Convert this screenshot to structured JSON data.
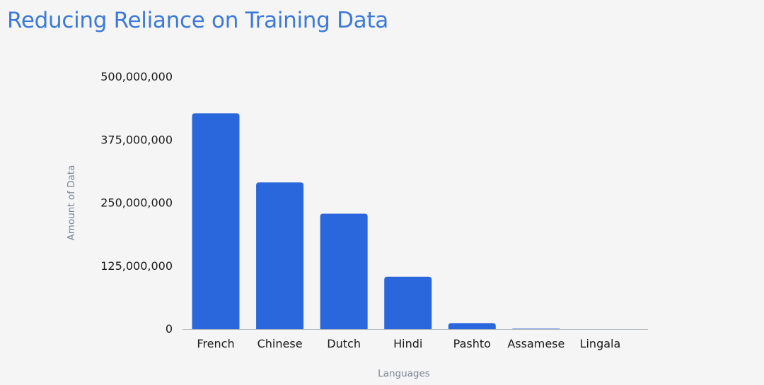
{
  "slide": {
    "title": "Reducing Reliance on Training Data"
  },
  "chart_data": {
    "type": "bar",
    "title": "",
    "xlabel": "Languages",
    "ylabel": "Amount of Data",
    "categories": [
      "French",
      "Chinese",
      "Dutch",
      "Hindi",
      "Pashto",
      "Assamese",
      "Lingala"
    ],
    "values": [
      428000000,
      291000000,
      229000000,
      104000000,
      12000000,
      1000000,
      0
    ],
    "ylim": [
      0,
      500000000
    ],
    "yticks": [
      0,
      125000000,
      250000000,
      375000000,
      500000000
    ],
    "ytick_labels": [
      "0",
      "125,000,000",
      "250,000,000",
      "375,000,000",
      "500,000,000"
    ],
    "grid": false,
    "legend": "none",
    "colors": {
      "bar": "#2b67dc",
      "title": "#3d7ad8",
      "axis_title": "#7b8494",
      "tick_label": "#1a1a1a"
    }
  }
}
